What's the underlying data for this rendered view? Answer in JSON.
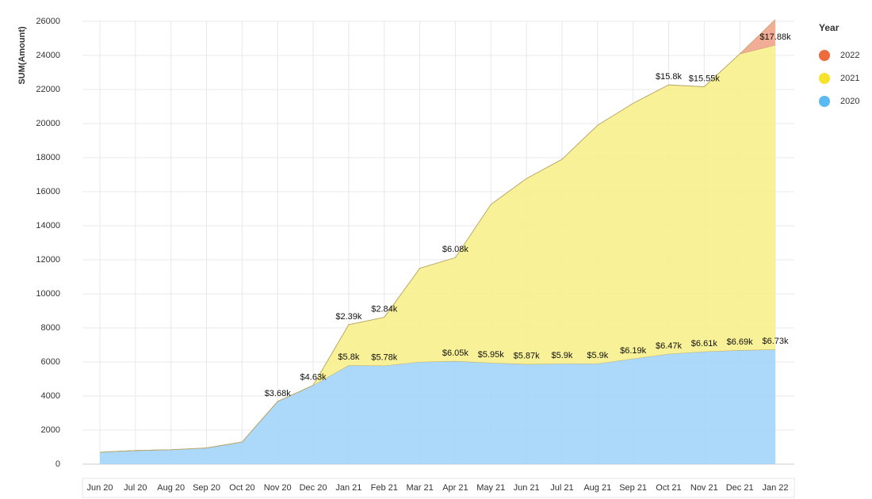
{
  "chart_data": {
    "type": "stacked_area",
    "y_label": "SUM(Amount)",
    "legend_title": "Year",
    "legend_position": "right",
    "grid": true,
    "categories": [
      "Jun 20",
      "Jul 20",
      "Aug 20",
      "Sep 20",
      "Oct 20",
      "Nov 20",
      "Dec 20",
      "Jan 21",
      "Feb 21",
      "Mar 21",
      "Apr 21",
      "May 21",
      "Jun 21",
      "Jul 21",
      "Aug 21",
      "Sep 21",
      "Oct 21",
      "Nov 21",
      "Dec 21",
      "Jan 22"
    ],
    "series": [
      {
        "name": "2020",
        "color": "#5bb9f3",
        "values": [
          700,
          800,
          850,
          950,
          1300,
          3680,
          4630,
          5800,
          5780,
          6000,
          6050,
          5950,
          5870,
          5900,
          5900,
          6190,
          6470,
          6610,
          6690,
          6730
        ],
        "value_labels": [
          null,
          null,
          null,
          null,
          null,
          "$3.68k",
          "$4.63k",
          "$5.8k",
          "$5.78k",
          null,
          "$6.05k",
          "$5.95k",
          "$5.87k",
          "$5.9k",
          "$5.9k",
          "$6.19k",
          "$6.47k",
          "$6.61k",
          "$6.69k",
          "$6.73k"
        ]
      },
      {
        "name": "2021",
        "color": "#f6e12b",
        "values": [
          0,
          0,
          0,
          0,
          0,
          0,
          0,
          2390,
          2840,
          5500,
          6080,
          9300,
          10900,
          12000,
          14000,
          15000,
          15800,
          15550,
          17400,
          17880
        ],
        "value_labels": [
          null,
          null,
          null,
          null,
          null,
          null,
          null,
          "$2.39k",
          "$2.84k",
          null,
          "$6.08k",
          null,
          null,
          null,
          null,
          null,
          "$15.8k",
          "$15.55k",
          null,
          "$17.88k"
        ]
      },
      {
        "name": "2022",
        "color": "#ef6a3c",
        "values": [
          0,
          0,
          0,
          0,
          0,
          0,
          0,
          0,
          0,
          0,
          0,
          0,
          0,
          0,
          0,
          0,
          0,
          0,
          0,
          1500
        ]
      }
    ],
    "ylim": [
      0,
      26000
    ],
    "yticks": [
      0,
      2000,
      4000,
      6000,
      8000,
      10000,
      12000,
      14000,
      16000,
      18000,
      20000,
      22000,
      24000,
      26000
    ]
  }
}
